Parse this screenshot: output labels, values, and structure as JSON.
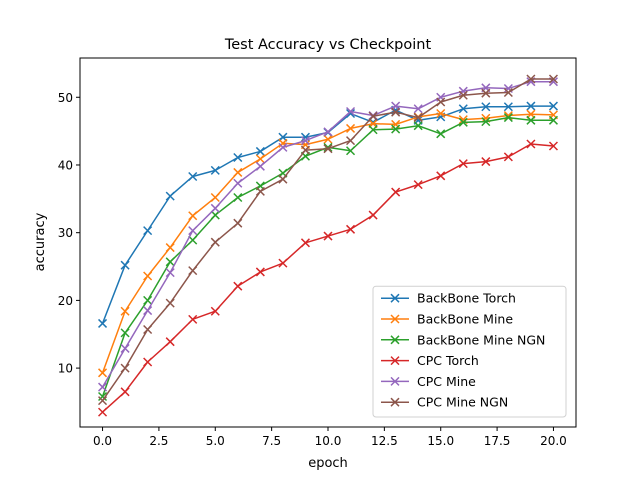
{
  "chart_data": {
    "type": "line",
    "title": "Test Accuracy vs Checkpoint",
    "xlabel": "epoch",
    "ylabel": "accuracy",
    "xlim": [
      -1.0,
      21.0
    ],
    "ylim": [
      1.3,
      55.8
    ],
    "xticks": [
      0.0,
      2.5,
      5.0,
      7.5,
      10.0,
      12.5,
      15.0,
      17.5,
      20.0
    ],
    "xtick_labels": [
      "0.0",
      "2.5",
      "5.0",
      "7.5",
      "10.0",
      "12.5",
      "15.0",
      "17.5",
      "20.0"
    ],
    "yticks": [
      10,
      20,
      30,
      40,
      50
    ],
    "ytick_labels": [
      "10",
      "20",
      "30",
      "40",
      "50"
    ],
    "grid": false,
    "legend_position": "bottom-right",
    "marker": "x",
    "x": [
      0,
      1,
      2,
      3,
      4,
      5,
      6,
      7,
      8,
      9,
      10,
      11,
      12,
      13,
      14,
      15,
      16,
      17,
      18,
      19,
      20
    ],
    "series": [
      {
        "name": "BackBone Torch",
        "color": "#1f77b4",
        "values": [
          16.6,
          25.2,
          30.3,
          35.4,
          38.3,
          39.2,
          41.1,
          42.0,
          44.1,
          44.1,
          44.8,
          47.6,
          46.3,
          48.1,
          46.6,
          47.1,
          48.3,
          48.6,
          48.6,
          48.7,
          48.7
        ]
      },
      {
        "name": "BackBone Mine",
        "color": "#ff7f0e",
        "values": [
          9.3,
          18.4,
          23.6,
          27.8,
          32.5,
          35.2,
          38.9,
          40.9,
          43.2,
          43.0,
          43.8,
          45.4,
          46.1,
          46.0,
          47.1,
          47.6,
          46.7,
          46.9,
          47.3,
          47.5,
          47.4
        ]
      },
      {
        "name": "BackBone Mine NGN",
        "color": "#2ca02c",
        "values": [
          5.8,
          15.2,
          20.0,
          25.7,
          28.9,
          32.6,
          35.2,
          36.9,
          38.8,
          41.3,
          42.6,
          42.1,
          45.2,
          45.3,
          45.8,
          44.6,
          46.3,
          46.4,
          47.0,
          46.6,
          46.6
        ]
      },
      {
        "name": "CPC Torch",
        "color": "#d62728",
        "values": [
          3.5,
          6.5,
          10.9,
          13.9,
          17.2,
          18.4,
          22.1,
          24.2,
          25.5,
          28.5,
          29.5,
          30.5,
          32.6,
          36.0,
          37.1,
          38.4,
          40.2,
          40.5,
          41.2,
          43.1,
          42.8
        ]
      },
      {
        "name": "CPC Mine",
        "color": "#9467bd",
        "values": [
          7.2,
          12.9,
          18.5,
          24.1,
          30.3,
          33.6,
          37.3,
          39.8,
          42.6,
          43.6,
          44.9,
          47.9,
          47.3,
          48.7,
          48.3,
          50.0,
          50.9,
          51.4,
          51.3,
          52.3,
          52.3
        ]
      },
      {
        "name": "CPC Mine NGN",
        "color": "#8c564b",
        "values": [
          5.2,
          10.0,
          15.7,
          19.6,
          24.4,
          28.6,
          31.4,
          36.1,
          37.9,
          42.2,
          42.4,
          43.6,
          47.2,
          47.8,
          47.0,
          49.3,
          50.3,
          50.6,
          50.7,
          52.7,
          52.7
        ]
      }
    ]
  }
}
